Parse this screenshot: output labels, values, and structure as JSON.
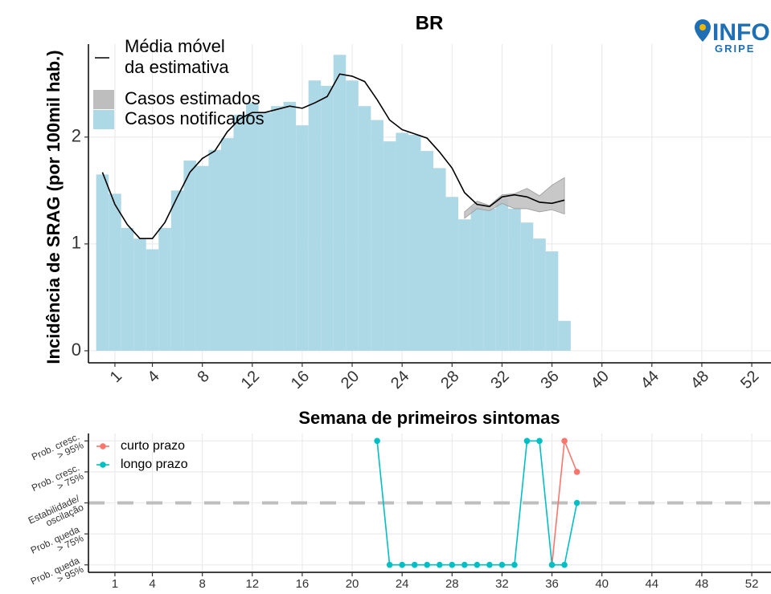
{
  "chart_data": [
    {
      "type": "bar",
      "title": "BR",
      "x_label": "Semana de primeiros sintomas",
      "y_label": "Incidência de SRAG (por 100mil hab.)",
      "x": [
        0,
        1,
        2,
        3,
        4,
        5,
        6,
        7,
        8,
        9,
        10,
        11,
        12,
        13,
        14,
        15,
        16,
        17,
        18,
        19,
        20,
        21,
        22,
        23,
        24,
        25,
        26,
        27,
        28,
        29,
        30,
        31,
        32,
        33,
        34,
        35,
        36,
        37
      ],
      "series": [
        {
          "name": "Média móvel\nda estimativa",
          "type": "line",
          "color": "#000000",
          "values": [
            1.67,
            1.37,
            1.18,
            1.05,
            1.05,
            1.2,
            1.44,
            1.67,
            1.8,
            1.87,
            2.05,
            2.17,
            2.23,
            2.23,
            2.26,
            2.29,
            2.27,
            2.32,
            2.38,
            2.59,
            2.57,
            2.52,
            2.35,
            2.16,
            2.07,
            2.03,
            1.99,
            1.86,
            1.71,
            1.48,
            1.37,
            1.35,
            1.44,
            1.46,
            1.44,
            1.39,
            1.38,
            1.41
          ]
        },
        {
          "name": "Casos estimados",
          "type": "area",
          "color": "#BEBEBE",
          "lower": [
            null,
            null,
            null,
            null,
            null,
            null,
            null,
            null,
            null,
            null,
            null,
            null,
            null,
            null,
            null,
            null,
            null,
            null,
            null,
            null,
            null,
            null,
            null,
            null,
            null,
            null,
            null,
            null,
            null,
            1.24,
            1.33,
            1.31,
            1.38,
            1.33,
            1.33,
            1.3,
            1.32,
            1.28
          ],
          "upper": [
            null,
            null,
            null,
            null,
            null,
            null,
            null,
            null,
            null,
            null,
            null,
            null,
            null,
            null,
            null,
            null,
            null,
            null,
            null,
            null,
            null,
            null,
            null,
            null,
            null,
            null,
            null,
            null,
            null,
            1.3,
            1.4,
            1.36,
            1.46,
            1.47,
            1.52,
            1.45,
            1.55,
            1.62
          ]
        },
        {
          "name": "Casos notificados",
          "type": "bar",
          "color": "#ADD8E6",
          "values": [
            1.65,
            1.47,
            1.15,
            1.05,
            0.95,
            1.15,
            1.5,
            1.78,
            1.73,
            1.88,
            1.99,
            2.21,
            2.32,
            2.23,
            2.29,
            2.33,
            2.11,
            2.53,
            2.48,
            2.77,
            2.53,
            2.29,
            2.16,
            1.96,
            2.04,
            2.02,
            1.87,
            1.71,
            1.44,
            1.23,
            1.35,
            1.33,
            1.42,
            1.33,
            1.2,
            1.05,
            0.93,
            0.28
          ]
        }
      ],
      "xlim": [
        -1.12,
        53.54
      ],
      "xticks": [
        1,
        4,
        8,
        12,
        16,
        20,
        24,
        28,
        32,
        36,
        40,
        44,
        48,
        52
      ],
      "ylim": [
        -0.113,
        2.87
      ],
      "yticks": [
        0,
        1,
        2
      ],
      "grid": true,
      "legend_position": "top-left"
    },
    {
      "type": "line",
      "x": [
        22,
        23,
        24,
        25,
        26,
        27,
        28,
        29,
        30,
        31,
        32,
        33,
        34,
        35,
        36,
        37,
        38
      ],
      "series": [
        {
          "name": "curto prazo",
          "color": "#F8766D",
          "values": [
            null,
            null,
            null,
            null,
            null,
            null,
            null,
            null,
            null,
            null,
            null,
            null,
            null,
            null,
            -2,
            2,
            1
          ]
        },
        {
          "name": "longo prazo",
          "color": "#00BFC4",
          "values": [
            2,
            -2,
            -2,
            -2,
            -2,
            -2,
            -2,
            -2,
            -2,
            -2,
            -2,
            -2,
            2,
            2,
            -2,
            -2,
            0
          ]
        }
      ],
      "xlim": [
        -1.12,
        53.54
      ],
      "xticks": [
        1,
        4,
        8,
        12,
        16,
        20,
        24,
        28,
        32,
        36,
        40,
        44,
        48,
        52
      ],
      "ylim": [
        -2.24,
        2.24
      ],
      "yticks": [
        {
          "value": -2,
          "label": "Prob. queda\n> 95%"
        },
        {
          "value": -1,
          "label": "Prob. queda\n> 75%"
        },
        {
          "value": 0,
          "label": "Estabilidade/\noscilação"
        },
        {
          "value": 1,
          "label": "Prob. cresc.\n> 75%"
        },
        {
          "value": 2,
          "label": "Prob. cresc.\n> 95%"
        }
      ],
      "hline": 0,
      "hline_color": "#BEBEBE",
      "grid": true,
      "legend_position": "top-left"
    }
  ],
  "logo": {
    "text": "INFO",
    "subtext": "GRIPE"
  }
}
